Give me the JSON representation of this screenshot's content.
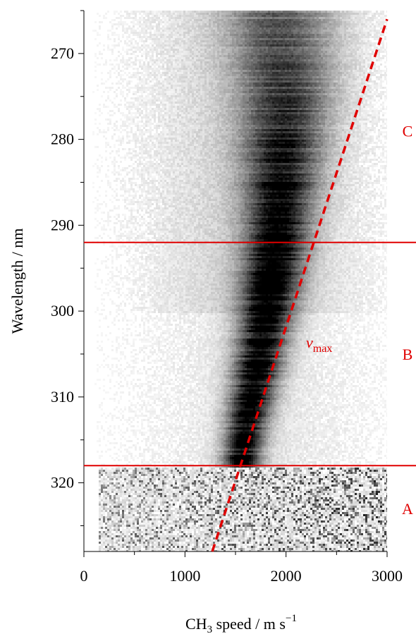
{
  "chart_data": {
    "type": "heatmap",
    "title": "",
    "xlabel": "CH",
    "xlabel_sub": "3",
    "xlabel_rest": " speed / m s",
    "xlabel_sup": "−1",
    "ylabel": "Wavelength / nm",
    "xlim": [
      0,
      3000
    ],
    "ylim": [
      265,
      328
    ],
    "y_inverted": true,
    "x_ticks": [
      0,
      1000,
      2000,
      3000
    ],
    "x_tick_labels": [
      "0",
      "1000",
      "2000",
      "3000"
    ],
    "y_ticks": [
      270,
      280,
      290,
      300,
      310,
      320
    ],
    "y_tick_labels": [
      "270",
      "280",
      "290",
      "300",
      "310",
      "320"
    ],
    "colormap": "white-to-black (grayscale intensity)",
    "intensity_ridge": {
      "description": "peak CH3 speed of the dark distribution at each wavelength",
      "wavelength_nm": [
        266,
        275,
        285,
        292,
        300,
        307,
        313,
        317
      ],
      "peak_speed_ms": [
        1950,
        2000,
        1950,
        1900,
        1800,
        1700,
        1600,
        1550
      ]
    },
    "horizontal_lines": [
      {
        "wavelength_nm": 292,
        "color": "#e00000"
      },
      {
        "wavelength_nm": 318,
        "color": "#e00000"
      }
    ],
    "vmax_line": {
      "label": "v",
      "label_sub": "max",
      "color": "#e00000",
      "style": "dashed",
      "points": [
        {
          "speed_ms": 1270,
          "wavelength_nm": 328
        },
        {
          "speed_ms": 3000,
          "wavelength_nm": 266
        }
      ]
    },
    "regions": [
      {
        "label": "C",
        "wavelength_nm": 279
      },
      {
        "label": "B",
        "wavelength_nm": 305
      },
      {
        "label": "A",
        "wavelength_nm": 323
      }
    ]
  }
}
